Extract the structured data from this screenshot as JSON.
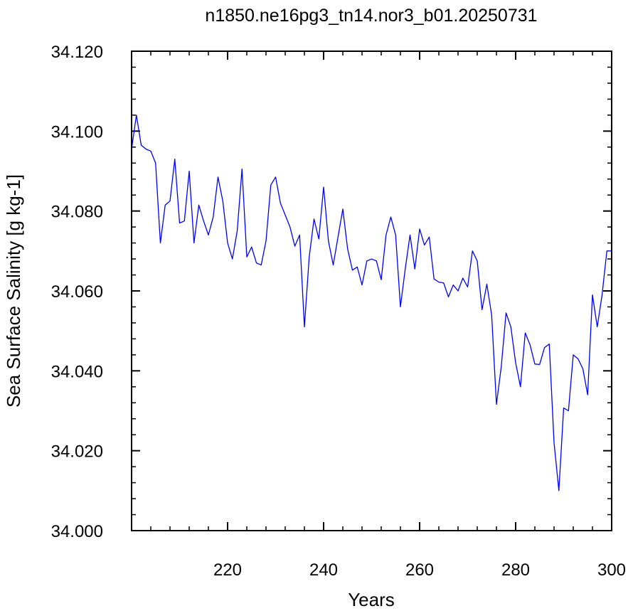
{
  "chart_data": {
    "type": "line",
    "title": "n1850.ne16pg3_tn14.nor3_b01.20250731",
    "xlabel": "Years",
    "ylabel": "Sea Surface Salinity [g kg-1]",
    "xlim": [
      200,
      300
    ],
    "ylim": [
      34.0,
      34.12
    ],
    "x_ticks": [
      {
        "value": 220,
        "label": "220"
      },
      {
        "value": 240,
        "label": "240"
      },
      {
        "value": 260,
        "label": "260"
      },
      {
        "value": 280,
        "label": "280"
      },
      {
        "value": 300,
        "label": "300"
      }
    ],
    "y_ticks": [
      {
        "value": 34.0,
        "label": "34.000"
      },
      {
        "value": 34.02,
        "label": "34.020"
      },
      {
        "value": 34.04,
        "label": "34.040"
      },
      {
        "value": 34.06,
        "label": "34.060"
      },
      {
        "value": 34.08,
        "label": "34.080"
      },
      {
        "value": 34.1,
        "label": "34.100"
      },
      {
        "value": 34.12,
        "label": "34.120"
      }
    ],
    "x_minor_step": 4,
    "y_minor_step": 0.004,
    "grid": false,
    "series_color": "#0000ff",
    "series": [
      {
        "x": [
          200,
          201,
          202,
          203,
          204,
          205,
          206,
          207,
          208,
          209,
          210,
          211,
          212,
          213,
          214,
          215,
          216,
          217,
          218,
          219,
          220,
          221,
          222,
          223,
          224,
          225,
          226,
          227,
          228,
          229,
          230,
          231,
          232,
          233,
          234,
          235,
          236,
          237,
          238,
          239,
          240,
          241,
          242,
          243,
          244,
          245,
          246,
          247,
          248,
          249,
          250,
          251,
          252,
          253,
          254,
          255,
          256,
          257,
          258,
          259,
          260,
          261,
          262,
          263,
          264,
          265,
          266,
          267,
          268,
          269,
          270,
          271,
          272,
          273,
          274,
          275,
          276,
          277,
          278,
          279,
          280,
          281,
          282,
          283,
          284,
          285,
          286,
          287,
          288,
          289,
          290,
          291,
          292,
          293,
          294,
          295,
          296,
          297,
          298,
          299,
          300
        ],
        "values": [
          34.0955,
          34.104,
          34.0965,
          34.0955,
          34.095,
          34.092,
          34.072,
          34.0815,
          34.0825,
          34.093,
          34.077,
          34.0775,
          34.09,
          34.072,
          34.0815,
          34.0775,
          34.074,
          34.0785,
          34.0885,
          34.0825,
          34.072,
          34.068,
          34.075,
          34.0905,
          34.0685,
          34.071,
          34.067,
          34.0665,
          34.0725,
          34.0865,
          34.0885,
          34.082,
          34.079,
          34.076,
          34.0712,
          34.074,
          34.051,
          34.0685,
          34.078,
          34.073,
          34.086,
          34.0725,
          34.0665,
          34.0735,
          34.0805,
          34.0705,
          34.0652,
          34.066,
          34.0615,
          34.0675,
          34.068,
          34.0675,
          34.0628,
          34.074,
          34.0785,
          34.074,
          34.056,
          34.0655,
          34.074,
          34.0655,
          34.0755,
          34.0715,
          34.0735,
          34.063,
          34.0622,
          34.062,
          34.0585,
          34.0615,
          34.06,
          34.0632,
          34.061,
          34.07,
          34.0675,
          34.0553,
          34.0617,
          34.054,
          34.0316,
          34.041,
          34.0545,
          34.051,
          34.042,
          34.036,
          34.0495,
          34.0465,
          34.0417,
          34.0416,
          34.0458,
          34.0467,
          34.022,
          34.01,
          34.0307,
          34.03,
          34.044,
          34.043,
          34.0405,
          34.034,
          34.059,
          34.051,
          34.059,
          34.07,
          34.07
        ]
      }
    ]
  }
}
